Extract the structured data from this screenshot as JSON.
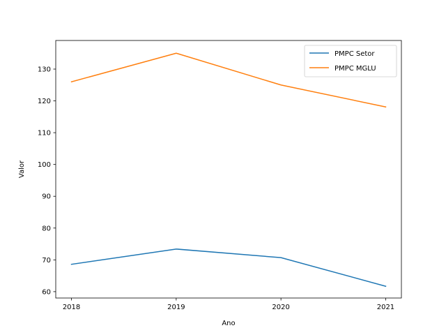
{
  "chart_data": {
    "type": "line",
    "title": "",
    "xlabel": "Ano",
    "ylabel": "Valor",
    "x": [
      2018,
      2019,
      2020,
      2021
    ],
    "x_tick_labels": [
      "2018",
      "2019",
      "2020",
      "2021"
    ],
    "ylim": [
      58,
      139
    ],
    "y_ticks": [
      60,
      70,
      80,
      90,
      100,
      110,
      120,
      130
    ],
    "y_tick_labels": [
      "60",
      "70",
      "80",
      "90",
      "100",
      "110",
      "120",
      "130"
    ],
    "grid": false,
    "legend_position": "top-right",
    "series": [
      {
        "name": "PMPC Setor",
        "color": "#1f77b4",
        "values": [
          68.6,
          73.4,
          70.7,
          61.7
        ]
      },
      {
        "name": "PMPC MGLU",
        "color": "#ff7f0e",
        "values": [
          126.0,
          135.0,
          125.0,
          118.1
        ]
      }
    ]
  }
}
